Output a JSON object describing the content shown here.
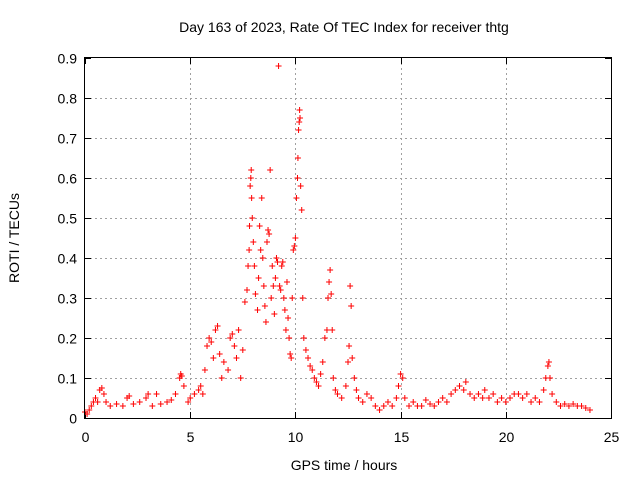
{
  "chart_data": {
    "type": "scatter",
    "title": "Day 163 of 2023, Rate Of TEC Index for receiver thtg",
    "xlabel": "GPS time / hours",
    "ylabel": "ROTI / TECUs",
    "xlim": [
      0,
      25
    ],
    "ylim": [
      0,
      0.9
    ],
    "x_ticks": [
      0,
      5,
      10,
      15,
      20,
      25
    ],
    "y_ticks": [
      0,
      0.1,
      0.2,
      0.3,
      0.4,
      0.5,
      0.6,
      0.7,
      0.8,
      0.9
    ],
    "x_tick_labels": [
      "0",
      "5",
      "10",
      "15",
      "20",
      "25"
    ],
    "y_tick_labels": [
      "0",
      "0.1",
      "0.2",
      "0.3",
      "0.4",
      "0.5",
      "0.6",
      "0.7",
      "0.8",
      "0.9"
    ],
    "grid": true,
    "marker": "+",
    "color": "#ff0000",
    "series": [
      {
        "name": "ROTI",
        "points": [
          [
            0.0,
            0.015
          ],
          [
            0.1,
            0.01
          ],
          [
            0.2,
            0.02
          ],
          [
            0.3,
            0.03
          ],
          [
            0.4,
            0.04
          ],
          [
            0.5,
            0.05
          ],
          [
            0.6,
            0.04
          ],
          [
            0.7,
            0.07
          ],
          [
            0.8,
            0.075
          ],
          [
            0.9,
            0.06
          ],
          [
            1.0,
            0.04
          ],
          [
            1.2,
            0.03
          ],
          [
            1.5,
            0.035
          ],
          [
            1.8,
            0.03
          ],
          [
            2.0,
            0.05
          ],
          [
            2.1,
            0.055
          ],
          [
            2.3,
            0.035
          ],
          [
            2.6,
            0.04
          ],
          [
            2.9,
            0.05
          ],
          [
            3.0,
            0.06
          ],
          [
            3.2,
            0.03
          ],
          [
            3.4,
            0.06
          ],
          [
            3.6,
            0.035
          ],
          [
            3.9,
            0.04
          ],
          [
            4.1,
            0.045
          ],
          [
            4.3,
            0.06
          ],
          [
            4.5,
            0.1
          ],
          [
            4.55,
            0.11
          ],
          [
            4.6,
            0.105
          ],
          [
            4.7,
            0.08
          ],
          [
            4.9,
            0.04
          ],
          [
            5.0,
            0.05
          ],
          [
            5.2,
            0.06
          ],
          [
            5.4,
            0.07
          ],
          [
            5.5,
            0.08
          ],
          [
            5.6,
            0.06
          ],
          [
            5.7,
            0.12
          ],
          [
            5.8,
            0.18
          ],
          [
            5.9,
            0.2
          ],
          [
            6.0,
            0.19
          ],
          [
            6.1,
            0.15
          ],
          [
            6.2,
            0.22
          ],
          [
            6.3,
            0.23
          ],
          [
            6.4,
            0.16
          ],
          [
            6.5,
            0.1
          ],
          [
            6.6,
            0.14
          ],
          [
            6.8,
            0.12
          ],
          [
            6.9,
            0.2
          ],
          [
            7.0,
            0.21
          ],
          [
            7.1,
            0.18
          ],
          [
            7.2,
            0.15
          ],
          [
            7.3,
            0.22
          ],
          [
            7.4,
            0.1
          ],
          [
            7.5,
            0.17
          ],
          [
            7.6,
            0.29
          ],
          [
            7.7,
            0.32
          ],
          [
            7.75,
            0.38
          ],
          [
            7.8,
            0.42
          ],
          [
            7.82,
            0.48
          ],
          [
            7.85,
            0.58
          ],
          [
            7.88,
            0.6
          ],
          [
            7.9,
            0.62
          ],
          [
            7.92,
            0.55
          ],
          [
            7.95,
            0.5
          ],
          [
            8.0,
            0.44
          ],
          [
            8.05,
            0.38
          ],
          [
            8.1,
            0.31
          ],
          [
            8.2,
            0.27
          ],
          [
            8.25,
            0.35
          ],
          [
            8.3,
            0.48
          ],
          [
            8.35,
            0.42
          ],
          [
            8.4,
            0.55
          ],
          [
            8.45,
            0.4
          ],
          [
            8.5,
            0.33
          ],
          [
            8.55,
            0.28
          ],
          [
            8.6,
            0.24
          ],
          [
            8.65,
            0.44
          ],
          [
            8.7,
            0.47
          ],
          [
            8.75,
            0.46
          ],
          [
            8.8,
            0.62
          ],
          [
            8.85,
            0.3
          ],
          [
            8.9,
            0.38
          ],
          [
            8.95,
            0.33
          ],
          [
            9.0,
            0.26
          ],
          [
            9.05,
            0.35
          ],
          [
            9.1,
            0.4
          ],
          [
            9.15,
            0.39
          ],
          [
            9.2,
            0.88
          ],
          [
            9.25,
            0.33
          ],
          [
            9.3,
            0.32
          ],
          [
            9.35,
            0.38
          ],
          [
            9.4,
            0.39
          ],
          [
            9.45,
            0.3
          ],
          [
            9.5,
            0.27
          ],
          [
            9.55,
            0.22
          ],
          [
            9.6,
            0.34
          ],
          [
            9.65,
            0.25
          ],
          [
            9.7,
            0.2
          ],
          [
            9.75,
            0.16
          ],
          [
            9.8,
            0.15
          ],
          [
            9.85,
            0.3
          ],
          [
            9.9,
            0.42
          ],
          [
            9.95,
            0.43
          ],
          [
            10.0,
            0.45
          ],
          [
            10.05,
            0.55
          ],
          [
            10.1,
            0.6
          ],
          [
            10.12,
            0.65
          ],
          [
            10.15,
            0.72
          ],
          [
            10.18,
            0.74
          ],
          [
            10.2,
            0.77
          ],
          [
            10.22,
            0.75
          ],
          [
            10.25,
            0.58
          ],
          [
            10.3,
            0.52
          ],
          [
            10.35,
            0.3
          ],
          [
            10.4,
            0.2
          ],
          [
            10.5,
            0.17
          ],
          [
            10.6,
            0.15
          ],
          [
            10.7,
            0.13
          ],
          [
            10.8,
            0.12
          ],
          [
            10.9,
            0.1
          ],
          [
            11.0,
            0.09
          ],
          [
            11.1,
            0.08
          ],
          [
            11.2,
            0.11
          ],
          [
            11.3,
            0.14
          ],
          [
            11.4,
            0.2
          ],
          [
            11.5,
            0.22
          ],
          [
            11.55,
            0.3
          ],
          [
            11.6,
            0.34
          ],
          [
            11.65,
            0.37
          ],
          [
            11.7,
            0.31
          ],
          [
            11.75,
            0.22
          ],
          [
            11.8,
            0.1
          ],
          [
            11.9,
            0.07
          ],
          [
            12.0,
            0.06
          ],
          [
            12.2,
            0.05
          ],
          [
            12.4,
            0.08
          ],
          [
            12.5,
            0.14
          ],
          [
            12.55,
            0.18
          ],
          [
            12.6,
            0.33
          ],
          [
            12.65,
            0.28
          ],
          [
            12.7,
            0.15
          ],
          [
            12.8,
            0.1
          ],
          [
            12.9,
            0.07
          ],
          [
            13.0,
            0.05
          ],
          [
            13.2,
            0.04
          ],
          [
            13.4,
            0.06
          ],
          [
            13.6,
            0.05
          ],
          [
            13.8,
            0.03
          ],
          [
            14.0,
            0.02
          ],
          [
            14.2,
            0.03
          ],
          [
            14.4,
            0.04
          ],
          [
            14.6,
            0.03
          ],
          [
            14.8,
            0.05
          ],
          [
            14.9,
            0.08
          ],
          [
            15.0,
            0.11
          ],
          [
            15.1,
            0.1
          ],
          [
            15.2,
            0.05
          ],
          [
            15.4,
            0.03
          ],
          [
            15.6,
            0.04
          ],
          [
            15.8,
            0.03
          ],
          [
            16.0,
            0.03
          ],
          [
            16.2,
            0.045
          ],
          [
            16.4,
            0.035
          ],
          [
            16.6,
            0.03
          ],
          [
            16.8,
            0.04
          ],
          [
            17.0,
            0.05
          ],
          [
            17.2,
            0.04
          ],
          [
            17.4,
            0.06
          ],
          [
            17.6,
            0.07
          ],
          [
            17.8,
            0.08
          ],
          [
            18.0,
            0.07
          ],
          [
            18.1,
            0.09
          ],
          [
            18.3,
            0.06
          ],
          [
            18.5,
            0.05
          ],
          [
            18.7,
            0.06
          ],
          [
            18.9,
            0.05
          ],
          [
            19.0,
            0.07
          ],
          [
            19.2,
            0.05
          ],
          [
            19.4,
            0.06
          ],
          [
            19.6,
            0.04
          ],
          [
            19.8,
            0.05
          ],
          [
            20.0,
            0.04
          ],
          [
            20.2,
            0.05
          ],
          [
            20.4,
            0.06
          ],
          [
            20.6,
            0.06
          ],
          [
            20.8,
            0.05
          ],
          [
            21.0,
            0.06
          ],
          [
            21.2,
            0.04
          ],
          [
            21.4,
            0.05
          ],
          [
            21.6,
            0.04
          ],
          [
            21.8,
            0.07
          ],
          [
            21.9,
            0.1
          ],
          [
            22.0,
            0.13
          ],
          [
            22.05,
            0.14
          ],
          [
            22.1,
            0.1
          ],
          [
            22.2,
            0.06
          ],
          [
            22.4,
            0.04
          ],
          [
            22.6,
            0.03
          ],
          [
            22.8,
            0.035
          ],
          [
            23.0,
            0.03
          ],
          [
            23.2,
            0.035
          ],
          [
            23.4,
            0.03
          ],
          [
            23.6,
            0.03
          ],
          [
            23.8,
            0.025
          ],
          [
            24.0,
            0.02
          ]
        ]
      }
    ]
  }
}
